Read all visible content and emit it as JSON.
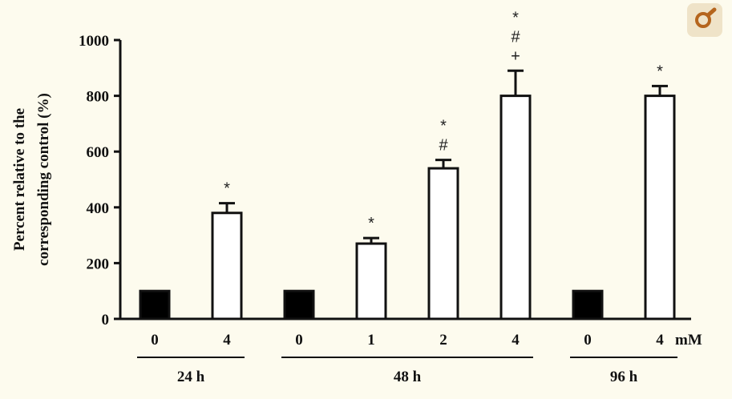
{
  "chart_data": {
    "type": "bar",
    "ylabel_lines": [
      "Percent relative to the",
      "corresponding control (%)"
    ],
    "ylim": [
      0,
      1000
    ],
    "yticks": [
      0,
      200,
      400,
      600,
      800,
      1000
    ],
    "unit_label": "mM",
    "bars": [
      {
        "label": "0",
        "value": 100,
        "filled": true,
        "error": null,
        "annotations": []
      },
      {
        "label": "4",
        "value": 380,
        "filled": false,
        "error": 35,
        "annotations": [
          "*"
        ]
      },
      {
        "label": "0",
        "value": 100,
        "filled": true,
        "error": null,
        "annotations": []
      },
      {
        "label": "1",
        "value": 270,
        "filled": false,
        "error": 20,
        "annotations": [
          "*"
        ]
      },
      {
        "label": "2",
        "value": 540,
        "filled": false,
        "error": 30,
        "annotations": [
          "#",
          "*"
        ]
      },
      {
        "label": "4",
        "value": 800,
        "filled": false,
        "error": 90,
        "annotations": [
          "+",
          "#",
          "*"
        ]
      },
      {
        "label": "0",
        "value": 100,
        "filled": true,
        "error": null,
        "annotations": []
      },
      {
        "label": "4",
        "value": 800,
        "filled": false,
        "error": 35,
        "annotations": [
          "*"
        ]
      }
    ],
    "groups": [
      {
        "label": "24 h",
        "bars": [
          0,
          1
        ]
      },
      {
        "label": "48 h",
        "bars": [
          2,
          3,
          4,
          5
        ]
      },
      {
        "label": "96 h",
        "bars": [
          6,
          7
        ]
      }
    ]
  }
}
